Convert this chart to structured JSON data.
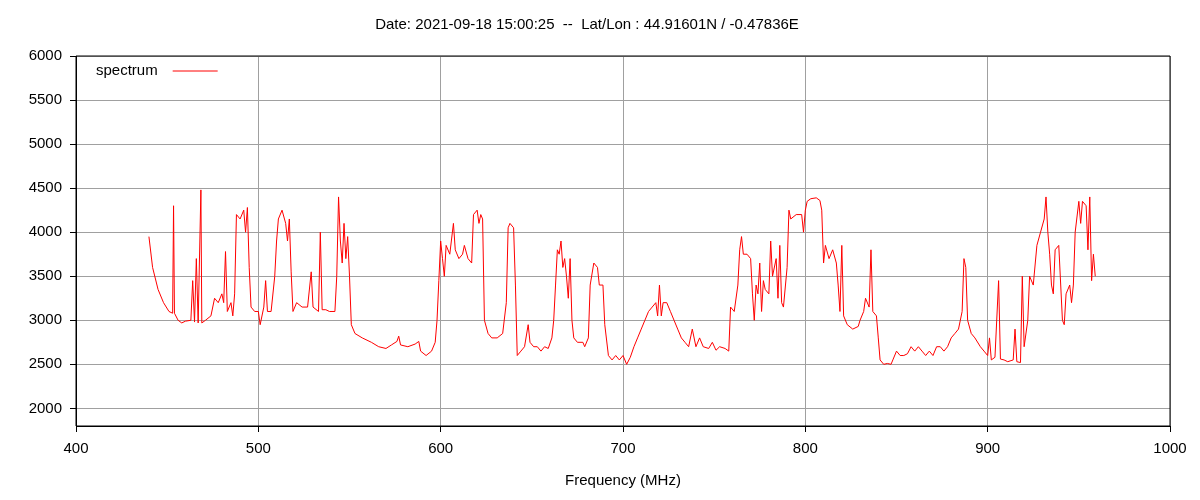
{
  "chart_data": {
    "type": "line",
    "title": "Date: 2021-09-18 15:00:25  --  Lat/Lon : 44.91601N / -0.47836E",
    "xlabel": "Frequency (MHz)",
    "xlim": [
      400,
      1000
    ],
    "xticks": [
      400,
      500,
      600,
      700,
      800,
      900,
      1000
    ],
    "ylim": [
      1800,
      6000
    ],
    "yticks": [
      2000,
      2500,
      3000,
      3500,
      4000,
      4500,
      5000,
      5500,
      6000
    ],
    "grid": true,
    "legend": "top left",
    "marker": "none",
    "line_style": "solid",
    "series": [
      {
        "name": "spectrum",
        "color": "#ff0000",
        "x": [
          440,
          442,
          445,
          448,
          451,
          453,
          453.5,
          454,
          456,
          458,
          460,
          463,
          464,
          465,
          466,
          467,
          468.5,
          469,
          471,
          474,
          476,
          478,
          480,
          481,
          482,
          483,
          485,
          486,
          487,
          488,
          490,
          492,
          493,
          494,
          495,
          496,
          498,
          500,
          501,
          503,
          504,
          505,
          507,
          509,
          510,
          511,
          513,
          515,
          516,
          517,
          518,
          519,
          521,
          524,
          527,
          529,
          530,
          533,
          534,
          535,
          537,
          539,
          542,
          543,
          544,
          545,
          546,
          547,
          548,
          549,
          550,
          551,
          553,
          557,
          562,
          566,
          570,
          573,
          576,
          577,
          578,
          582,
          586,
          588,
          589,
          592,
          595,
          597,
          598,
          599,
          600,
          601,
          602,
          603,
          605,
          607,
          608,
          610,
          612,
          613,
          615,
          617,
          618,
          620,
          621,
          622,
          623,
          624,
          626,
          628,
          631,
          634,
          636,
          637,
          638,
          640,
          641,
          642,
          644,
          646,
          648,
          649,
          651,
          653,
          655,
          657,
          659,
          661,
          662,
          663,
          664,
          665,
          666,
          667,
          668,
          669,
          670,
          671,
          672,
          673,
          675,
          678,
          679,
          681,
          682,
          684,
          686,
          687,
          689,
          690,
          692,
          694,
          696,
          698,
          700,
          702,
          704,
          706,
          708,
          710,
          712,
          714,
          716,
          718,
          719,
          720,
          721,
          722,
          724,
          726,
          728,
          730,
          732,
          734,
          736,
          738,
          740,
          742,
          744,
          747,
          749,
          751,
          753,
          756,
          758,
          759,
          761,
          763,
          764,
          765,
          766,
          768,
          770,
          771,
          772,
          773,
          774,
          775,
          776,
          777,
          778,
          780,
          781,
          782,
          784,
          785,
          786,
          787,
          788,
          790,
          791,
          792,
          795,
          798,
          799,
          800,
          801,
          803,
          806,
          808,
          809,
          810,
          811,
          813,
          815,
          817,
          818,
          819,
          820,
          821,
          823,
          826,
          829,
          830,
          832,
          833,
          835,
          836,
          837,
          839,
          840,
          841,
          843,
          845,
          847,
          848,
          850,
          852,
          854,
          856,
          858,
          860,
          862,
          864,
          866,
          868,
          870,
          872,
          874,
          876,
          878,
          880,
          882,
          884,
          886,
          887,
          888,
          889,
          891,
          893,
          896,
          898,
          900,
          901,
          902,
          904,
          906,
          907,
          909,
          911,
          914,
          915,
          916,
          918,
          919,
          920,
          922,
          923,
          925,
          927,
          929,
          931,
          932,
          933,
          934,
          935,
          936,
          937,
          939,
          941,
          942,
          943,
          945,
          946,
          947,
          948,
          950,
          951,
          952,
          954,
          955,
          956,
          957,
          958,
          959
        ],
        "values": [
          3950,
          3600,
          3350,
          3200,
          3100,
          3080,
          4300,
          3080,
          3000,
          2970,
          2990,
          3000,
          3450,
          2980,
          3700,
          2970,
          4480,
          2970,
          3000,
          3050,
          3250,
          3200,
          3300,
          3200,
          3780,
          3100,
          3200,
          3050,
          3300,
          4200,
          4150,
          4250,
          4000,
          4280,
          3600,
          3150,
          3100,
          3100,
          2950,
          3150,
          3450,
          3100,
          3100,
          3500,
          3900,
          4150,
          4250,
          4100,
          3900,
          4150,
          3550,
          3100,
          3200,
          3150,
          3150,
          3550,
          3150,
          3100,
          4000,
          3120,
          3120,
          3100,
          3100,
          3500,
          4400,
          3900,
          3650,
          4100,
          3700,
          3950,
          3500,
          2950,
          2850,
          2800,
          2750,
          2700,
          2680,
          2720,
          2760,
          2820,
          2720,
          2700,
          2730,
          2760,
          2650,
          2600,
          2650,
          2750,
          3000,
          3450,
          3900,
          3700,
          3500,
          3850,
          3750,
          4100,
          3800,
          3700,
          3750,
          3850,
          3700,
          3650,
          4200,
          4250,
          4100,
          4200,
          4150,
          3000,
          2850,
          2800,
          2800,
          2850,
          3200,
          4050,
          4100,
          4050,
          3400,
          2600,
          2650,
          2700,
          2950,
          2750,
          2700,
          2700,
          2650,
          2700,
          2680,
          2800,
          3000,
          3400,
          3800,
          3750,
          3900,
          3600,
          3700,
          3500,
          3250,
          3700,
          3000,
          2800,
          2750,
          2750,
          2700,
          2800,
          3400,
          3650,
          3600,
          3400,
          3400,
          2950,
          2600,
          2550,
          2600,
          2550,
          2600,
          2500,
          2580,
          2700,
          2800,
          2900,
          3000,
          3100,
          3150,
          3200,
          3050,
          3400,
          3050,
          3200,
          3200,
          3100,
          3000,
          2900,
          2800,
          2750,
          2700,
          2900,
          2700,
          2800,
          2700,
          2680,
          2750,
          2660,
          2700,
          2680,
          2650,
          3150,
          3100,
          3400,
          3800,
          3950,
          3750,
          3750,
          3700,
          3300,
          3000,
          3400,
          3300,
          3650,
          3100,
          3450,
          3350,
          3300,
          3900,
          3500,
          3700,
          3250,
          3850,
          3200,
          3150,
          3600,
          4250,
          4150,
          4200,
          4200,
          4000,
          4250,
          4350,
          4380,
          4390,
          4360,
          4250,
          3650,
          3850,
          3700,
          3800,
          3650,
          3400,
          3100,
          3850,
          3050,
          2950,
          2900,
          2930,
          3000,
          3100,
          3250,
          3150,
          3800,
          3100,
          3050,
          2800,
          2550,
          2500,
          2510,
          2500,
          2550,
          2650,
          2600,
          2600,
          2620,
          2700,
          2650,
          2700,
          2650,
          2600,
          2650,
          2600,
          2700,
          2700,
          2650,
          2700,
          2800,
          2850,
          2900,
          3100,
          3700,
          3600,
          3000,
          2850,
          2800,
          2700,
          2650,
          2600,
          2800,
          2550,
          2580,
          3450,
          2560,
          2550,
          2530,
          2550,
          2900,
          2530,
          2520,
          3500,
          2700,
          3000,
          3500,
          3400,
          3850,
          4000,
          4150,
          4400,
          4000,
          3750,
          3400,
          3300,
          3800,
          3850,
          3000,
          2950,
          3300,
          3400,
          3200,
          3400,
          4000,
          4350,
          4100,
          4350,
          4300,
          3800,
          4400,
          3450,
          3750,
          3500
        ]
      }
    ]
  }
}
